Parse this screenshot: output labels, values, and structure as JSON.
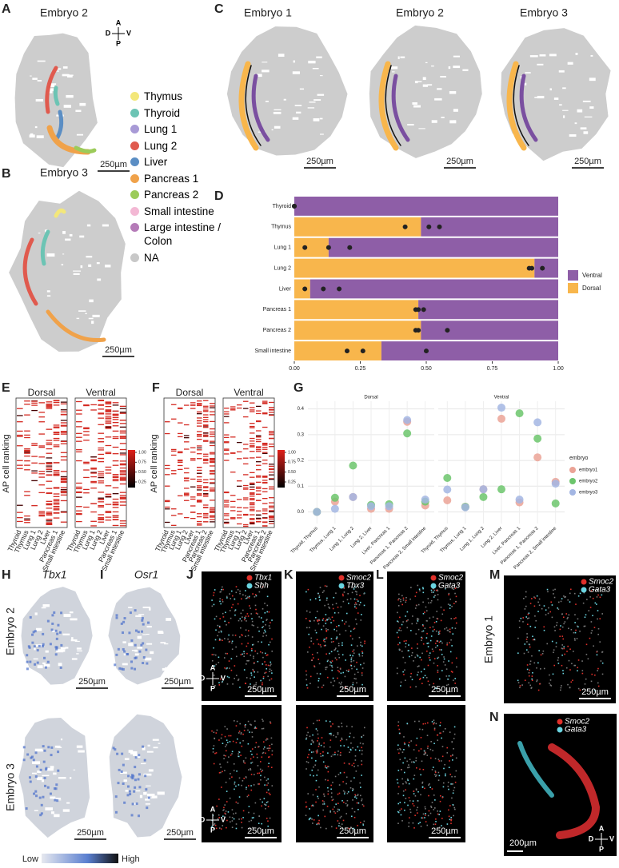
{
  "panel_labels": [
    "A",
    "B",
    "C",
    "D",
    "E",
    "F",
    "G",
    "H",
    "I",
    "J",
    "K",
    "L",
    "M",
    "N"
  ],
  "compass": {
    "a": "A",
    "d": "D",
    "v": "V",
    "p": "P"
  },
  "scale_bars": {
    "um250": "250µm",
    "um200": "200µm"
  },
  "spatial": {
    "a_title": "Embryo 2",
    "b_title": "Embryo 3",
    "c_titles": [
      "Embryo 1",
      "Embryo 2",
      "Embryo 3"
    ]
  },
  "cell_types": [
    {
      "name": "Thymus",
      "color": "#f3e77a"
    },
    {
      "name": "Thyroid",
      "color": "#6cc4b4"
    },
    {
      "name": "Lung 1",
      "color": "#a89ad6"
    },
    {
      "name": "Lung 2",
      "color": "#e05a4e"
    },
    {
      "name": "Liver",
      "color": "#5b8ec4"
    },
    {
      "name": "Pancreas 1",
      "color": "#f0a24a"
    },
    {
      "name": "Pancreas 2",
      "color": "#9ccb5a"
    },
    {
      "name": "Small intestine",
      "color": "#f3b8d4"
    },
    {
      "name": "Large intestine / Colon",
      "color": "#b57bb8"
    },
    {
      "name": "NA",
      "color": "#c8c8c8"
    }
  ],
  "heatmaps": {
    "groups": [
      "Dorsal",
      "Ventral"
    ],
    "ylabel": "AP cell ranking",
    "e_categories": [
      "Thyroid",
      "Thymus",
      "Lung 1",
      "Lung 2",
      "Liver",
      "Pancreas 1",
      "Small intestine"
    ],
    "f_categories": [
      "Thyroid",
      "Thymus",
      "Lung 1",
      "Lung 2",
      "Liver",
      "Pancreas 1",
      "Pancreas 2",
      "Small intestine"
    ],
    "colorbar_ticks": [
      {
        "value": 1,
        "label": "1.00"
      },
      {
        "value": 0.75,
        "label": "0.75"
      },
      {
        "value": 0.5,
        "label": "0.50"
      },
      {
        "value": 0.25,
        "label": "0.25"
      }
    ]
  },
  "expression": {
    "genes": [
      "Tbx1",
      "Osr1"
    ],
    "rows": [
      "Embryo 2",
      "Embryo 3"
    ],
    "scale": [
      "Low",
      "High"
    ]
  },
  "stains": {
    "J": [
      "Tbx1",
      "Shh"
    ],
    "K": [
      "Smoc2",
      "Tbx3"
    ],
    "L": [
      "Smoc2",
      "Gata3"
    ],
    "M": [
      "Smoc2",
      "Gata3"
    ],
    "N": [
      "Smoc2",
      "Gata3"
    ],
    "m_row": "Embryo 1"
  },
  "chart_data": [
    {
      "type": "stacked_barh",
      "categories": [
        "Thyroid",
        "Thymus",
        "Lung 1",
        "Lung 2",
        "Liver",
        "Pancreas 1",
        "Pancreas 2",
        "Small intestine"
      ],
      "series": [
        {
          "name": "Dorsal",
          "color": "#f8b64c",
          "values": [
            0,
            0.48,
            0.13,
            0.91,
            0.06,
            0.47,
            0.48,
            0.33
          ]
        },
        {
          "name": "Ventral",
          "color": "#8e5ea7",
          "values": [
            1,
            0.52,
            0.87,
            0.09,
            0.94,
            0.53,
            0.52,
            0.67
          ]
        }
      ],
      "points": [
        [
          0,
          0,
          0
        ],
        [
          0.42,
          0.51,
          0.55
        ],
        [
          0.04,
          0.13,
          0.21
        ],
        [
          0.89,
          0.9,
          0.94
        ],
        [
          0.04,
          0.11,
          0.17
        ],
        [
          0.46,
          0.47,
          0.49
        ],
        [
          0.46,
          0.47,
          0.58
        ],
        [
          0.2,
          0.26,
          0.5
        ]
      ],
      "xlim": [
        0,
        1
      ],
      "xticks": [
        {
          "value": 0,
          "label": "0.00"
        },
        {
          "value": 0.25,
          "label": "0.25"
        },
        {
          "value": 0.5,
          "label": "0.50"
        },
        {
          "value": 0.75,
          "label": "0.75"
        },
        {
          "value": 1,
          "label": "1.00"
        }
      ]
    },
    {
      "type": "faceted_scatter",
      "facets": [
        "Dorsal",
        "Ventral"
      ],
      "categories": [
        "Thyroid, Thymus",
        "Thymus, Lung 1",
        "Lung 1, Lung 2",
        "Lung 2, Liver",
        "Liver, Pancreas 1",
        "Pancreas 1, Pancreas 2",
        "Pancreas 2, Small intestine"
      ],
      "legend_title": "embryo",
      "series": [
        {
          "name": "embryo1",
          "color": "#eba396",
          "values": [
            [
              0,
              0.04,
              0.058,
              0.012,
              0.012,
              0.35,
              0.025
            ],
            [
              0.045,
              0.02,
              0.088,
              0.362,
              0.037,
              0.212,
              0.117
            ]
          ]
        },
        {
          "name": "embryo2",
          "color": "#6cc56c",
          "values": [
            [
              0,
              0.055,
              0.18,
              0.027,
              0.03,
              0.305,
              0.04
            ],
            [
              0.132,
              0.02,
              0.058,
              0.088,
              0.383,
              0.285,
              0.033
            ]
          ]
        },
        {
          "name": "embryo3",
          "color": "#a3b6e3",
          "values": [
            [
              0,
              0.012,
              0.058,
              0.022,
              0.022,
              0.357,
              0.048
            ],
            [
              0.087,
              0.018,
              0.088,
              0.405,
              0.048,
              0.348,
              0.11
            ]
          ]
        }
      ],
      "ylim": [
        -0.045,
        0.43
      ],
      "yticks": [
        {
          "value": 0,
          "label": "0.0"
        },
        0.1,
        0.2,
        0.3,
        0.4
      ],
      "grid": true
    }
  ]
}
